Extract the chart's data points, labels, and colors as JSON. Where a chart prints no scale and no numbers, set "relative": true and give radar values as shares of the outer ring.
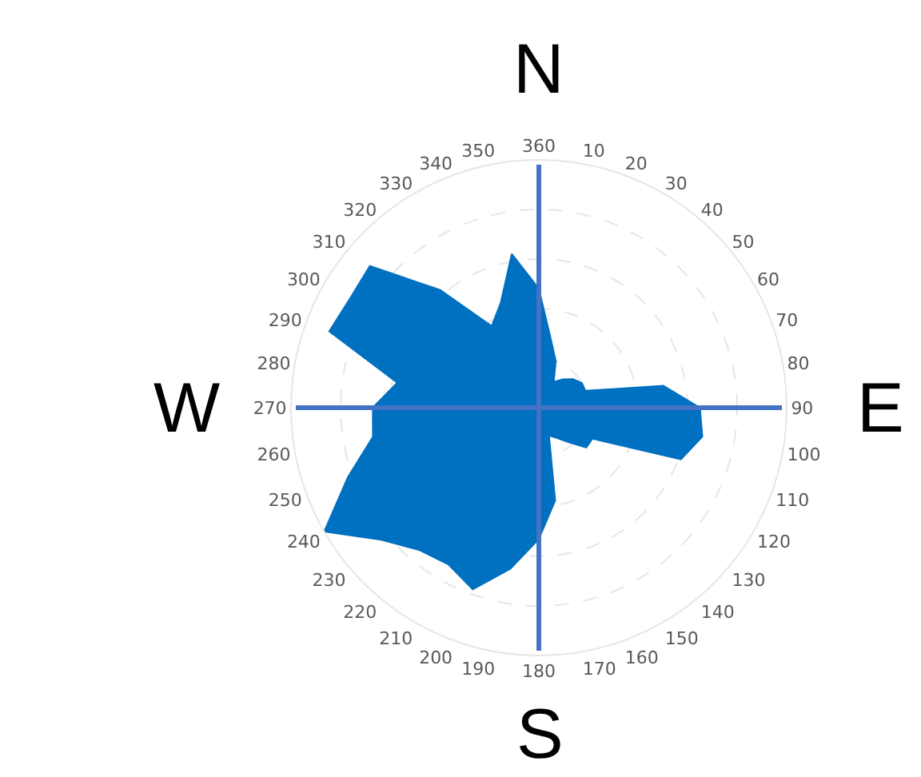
{
  "chart_data": {
    "type": "radar",
    "relative": true,
    "categories": [
      "360",
      "10",
      "20",
      "30",
      "40",
      "50",
      "60",
      "70",
      "80",
      "90",
      "100",
      "110",
      "120",
      "130",
      "140",
      "150",
      "160",
      "170",
      "180",
      "190",
      "200",
      "210",
      "220",
      "230",
      "240",
      "250",
      "260",
      "270",
      "280",
      "290",
      "300",
      "310",
      "320",
      "330",
      "340",
      "350"
    ],
    "series": [
      {
        "color": "#0070c0",
        "values": [
          0.48,
          0.28,
          0.2,
          0.12,
          0.15,
          0.18,
          0.2,
          0.2,
          0.51,
          0.65,
          0.67,
          0.61,
          0.25,
          0.25,
          0.18,
          0.14,
          0.12,
          0.38,
          0.53,
          0.66,
          0.78,
          0.73,
          0.75,
          0.83,
          1.0,
          0.82,
          0.68,
          0.67,
          0.58,
          0.9,
          0.88,
          0.89,
          0.62,
          0.38,
          0.45,
          0.63
        ]
      }
    ],
    "annotations": [
      "N",
      "E",
      "S",
      "W"
    ],
    "grid": true
  }
}
